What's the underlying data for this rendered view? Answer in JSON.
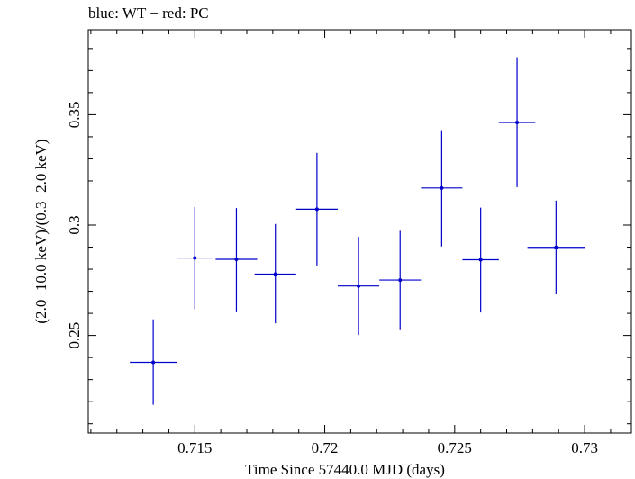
{
  "title": "blue: WT − red: PC",
  "chart_data": {
    "type": "scatter",
    "title": "blue: WT − red: PC",
    "xlabel": "Time Since 57440.0 MJD (days)",
    "ylabel": "(2.0−10.0 keV)/(0.3−2.0 keV)",
    "xlim": [
      0.7109,
      0.7318
    ],
    "ylim": [
      0.2058,
      0.3885
    ],
    "grid": false,
    "x_ticks": [
      0.715,
      0.72,
      0.725,
      0.73
    ],
    "x_tick_labels": [
      "0.715",
      "0.72",
      "0.725",
      "0.73"
    ],
    "y_ticks": [
      0.25,
      0.3,
      0.35
    ],
    "y_tick_labels": [
      "0.25",
      "0.3",
      "0.35"
    ],
    "series": [
      {
        "color": "#0000cc",
        "points": [
          {
            "x": 0.7134,
            "y": 0.2378,
            "xerr": 0.0009,
            "yerr_low": 0.0192,
            "yerr_high": 0.0195
          },
          {
            "x": 0.715,
            "y": 0.2851,
            "xerr": 0.0007,
            "yerr_low": 0.0232,
            "yerr_high": 0.0231
          },
          {
            "x": 0.7166,
            "y": 0.2845,
            "xerr": 0.0008,
            "yerr_low": 0.0236,
            "yerr_high": 0.0232
          },
          {
            "x": 0.7181,
            "y": 0.2778,
            "xerr": 0.0008,
            "yerr_low": 0.0223,
            "yerr_high": 0.0227
          },
          {
            "x": 0.7197,
            "y": 0.3072,
            "xerr": 0.0008,
            "yerr_low": 0.0255,
            "yerr_high": 0.0255
          },
          {
            "x": 0.7213,
            "y": 0.2724,
            "xerr": 0.0008,
            "yerr_low": 0.0222,
            "yerr_high": 0.0223
          },
          {
            "x": 0.7229,
            "y": 0.2751,
            "xerr": 0.0008,
            "yerr_low": 0.0223,
            "yerr_high": 0.0223
          },
          {
            "x": 0.7245,
            "y": 0.3168,
            "xerr": 0.0008,
            "yerr_low": 0.0265,
            "yerr_high": 0.0262
          },
          {
            "x": 0.726,
            "y": 0.2843,
            "xerr": 0.0007,
            "yerr_low": 0.0239,
            "yerr_high": 0.0236
          },
          {
            "x": 0.7274,
            "y": 0.3465,
            "xerr": 0.0007,
            "yerr_low": 0.0293,
            "yerr_high": 0.0295
          },
          {
            "x": 0.7289,
            "y": 0.2899,
            "xerr": 0.0011,
            "yerr_low": 0.0212,
            "yerr_high": 0.0212
          }
        ]
      }
    ]
  }
}
